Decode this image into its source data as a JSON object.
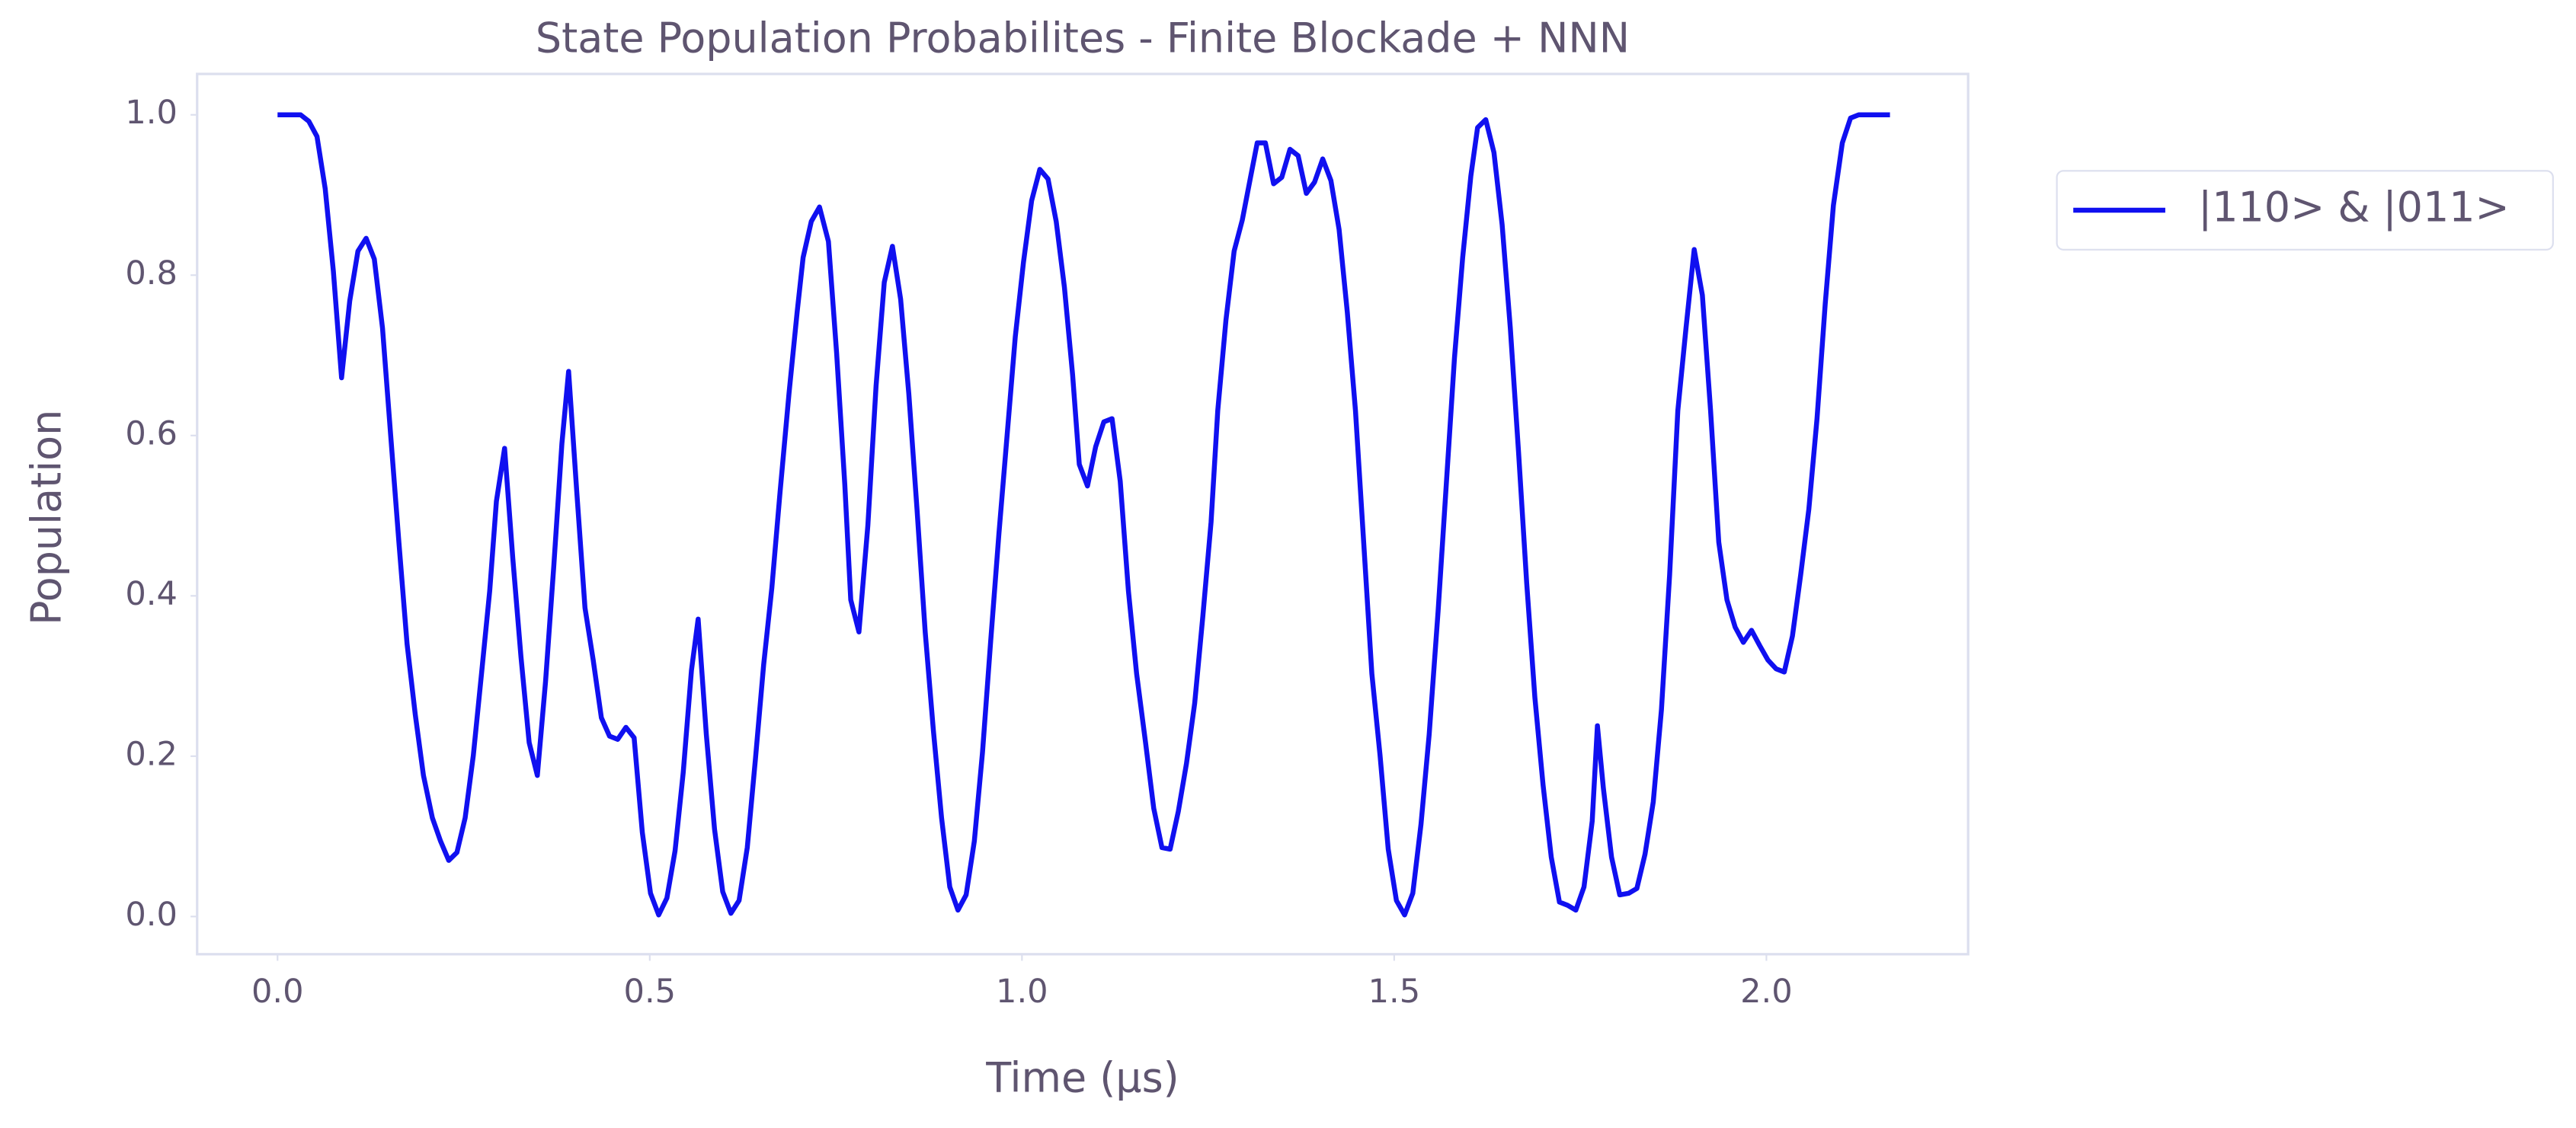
{
  "chart_data": {
    "type": "line",
    "title": "State Population Probabilites - Finite Blockade + NNN",
    "x_label": "Time (μs)",
    "y_label": "Population",
    "x": [
      0,
      0.031,
      0.042,
      0.053,
      0.064,
      0.075,
      0.086,
      0.097,
      0.108,
      0.119,
      0.13,
      0.141,
      0.152,
      0.163,
      0.174,
      0.185,
      0.196,
      0.208,
      0.219,
      0.23,
      0.241,
      0.252,
      0.263,
      0.274,
      0.285,
      0.294,
      0.305,
      0.316,
      0.327,
      0.338,
      0.349,
      0.36,
      0.371,
      0.382,
      0.391,
      0.402,
      0.413,
      0.424,
      0.435,
      0.446,
      0.457,
      0.468,
      0.479,
      0.49,
      0.501,
      0.512,
      0.523,
      0.534,
      0.545,
      0.556,
      0.565,
      0.576,
      0.587,
      0.598,
      0.609,
      0.62,
      0.631,
      0.642,
      0.653,
      0.664,
      0.675,
      0.687,
      0.698,
      0.706,
      0.717,
      0.728,
      0.74,
      0.751,
      0.762,
      0.77,
      0.781,
      0.793,
      0.804,
      0.815,
      0.826,
      0.837,
      0.848,
      0.859,
      0.87,
      0.881,
      0.892,
      0.903,
      0.914,
      0.925,
      0.936,
      0.947,
      0.958,
      0.969,
      0.98,
      0.991,
      1.002,
      1.013,
      1.024,
      1.035,
      1.046,
      1.057,
      1.068,
      1.077,
      1.088,
      1.099,
      1.11,
      1.121,
      1.132,
      1.143,
      1.154,
      1.166,
      1.177,
      1.188,
      1.199,
      1.21,
      1.221,
      1.232,
      1.243,
      1.254,
      1.263,
      1.274,
      1.285,
      1.296,
      1.307,
      1.316,
      1.327,
      1.338,
      1.349,
      1.36,
      1.371,
      1.382,
      1.393,
      1.404,
      1.415,
      1.426,
      1.437,
      1.448,
      1.459,
      1.47,
      1.481,
      1.492,
      1.503,
      1.514,
      1.525,
      1.536,
      1.547,
      1.559,
      1.57,
      1.581,
      1.592,
      1.603,
      1.612,
      1.623,
      1.634,
      1.645,
      1.656,
      1.667,
      1.678,
      1.689,
      1.7,
      1.711,
      1.722,
      1.733,
      1.744,
      1.755,
      1.766,
      1.773,
      1.781,
      1.792,
      1.803,
      1.815,
      1.826,
      1.837,
      1.848,
      1.859,
      1.87,
      1.881,
      1.892,
      1.903,
      1.914,
      1.925,
      1.936,
      1.947,
      1.958,
      1.969,
      1.98,
      1.991,
      2.002,
      2.013,
      2.024,
      2.035,
      2.046,
      2.057,
      2.068,
      2.079,
      2.09,
      2.102,
      2.113,
      2.124,
      2.166
    ],
    "series": [
      {
        "name": "|110> & |011>",
        "color": "#1010f0",
        "values": [
          1.0,
          1.0,
          0.992,
          0.973,
          0.908,
          0.805,
          0.672,
          0.768,
          0.83,
          0.846,
          0.82,
          0.734,
          0.6,
          0.467,
          0.34,
          0.252,
          0.176,
          0.123,
          0.094,
          0.07,
          0.08,
          0.123,
          0.201,
          0.303,
          0.406,
          0.518,
          0.584,
          0.447,
          0.324,
          0.217,
          0.176,
          0.293,
          0.436,
          0.59,
          0.68,
          0.529,
          0.385,
          0.32,
          0.248,
          0.225,
          0.221,
          0.236,
          0.223,
          0.105,
          0.029,
          0.002,
          0.023,
          0.082,
          0.18,
          0.307,
          0.371,
          0.227,
          0.109,
          0.031,
          0.004,
          0.02,
          0.086,
          0.197,
          0.314,
          0.41,
          0.529,
          0.652,
          0.754,
          0.822,
          0.867,
          0.885,
          0.842,
          0.703,
          0.539,
          0.395,
          0.355,
          0.488,
          0.662,
          0.791,
          0.836,
          0.77,
          0.652,
          0.508,
          0.355,
          0.232,
          0.123,
          0.037,
          0.008,
          0.027,
          0.094,
          0.205,
          0.344,
          0.477,
          0.6,
          0.723,
          0.816,
          0.893,
          0.932,
          0.92,
          0.867,
          0.785,
          0.676,
          0.564,
          0.537,
          0.586,
          0.617,
          0.621,
          0.543,
          0.406,
          0.303,
          0.217,
          0.135,
          0.086,
          0.084,
          0.131,
          0.191,
          0.266,
          0.375,
          0.492,
          0.631,
          0.744,
          0.83,
          0.869,
          0.922,
          0.965,
          0.965,
          0.914,
          0.922,
          0.957,
          0.949,
          0.902,
          0.916,
          0.945,
          0.918,
          0.857,
          0.754,
          0.631,
          0.467,
          0.303,
          0.201,
          0.084,
          0.02,
          0.002,
          0.029,
          0.115,
          0.227,
          0.381,
          0.539,
          0.697,
          0.822,
          0.924,
          0.984,
          0.994,
          0.953,
          0.863,
          0.734,
          0.58,
          0.416,
          0.273,
          0.164,
          0.074,
          0.018,
          0.014,
          0.008,
          0.037,
          0.119,
          0.238,
          0.16,
          0.074,
          0.027,
          0.029,
          0.035,
          0.078,
          0.143,
          0.258,
          0.426,
          0.631,
          0.734,
          0.832,
          0.775,
          0.631,
          0.467,
          0.395,
          0.361,
          0.342,
          0.357,
          0.338,
          0.32,
          0.309,
          0.305,
          0.35,
          0.426,
          0.508,
          0.621,
          0.764,
          0.887,
          0.965,
          0.996,
          1.0,
          1.0
        ]
      }
    ],
    "xlim": [
      -0.108,
      2.271
    ],
    "ylim": [
      -0.047,
      1.051
    ],
    "xticks": [
      {
        "value": 0,
        "label": "0.0"
      },
      0.5,
      {
        "value": 1,
        "label": "1.0"
      },
      1.5,
      {
        "value": 2,
        "label": "2.0"
      }
    ],
    "yticks": [
      {
        "value": 0,
        "label": "0.0"
      },
      0.2,
      0.4,
      0.6,
      0.8,
      {
        "value": 1,
        "label": "1.0"
      }
    ],
    "grid": false,
    "legend": "outside-right"
  }
}
